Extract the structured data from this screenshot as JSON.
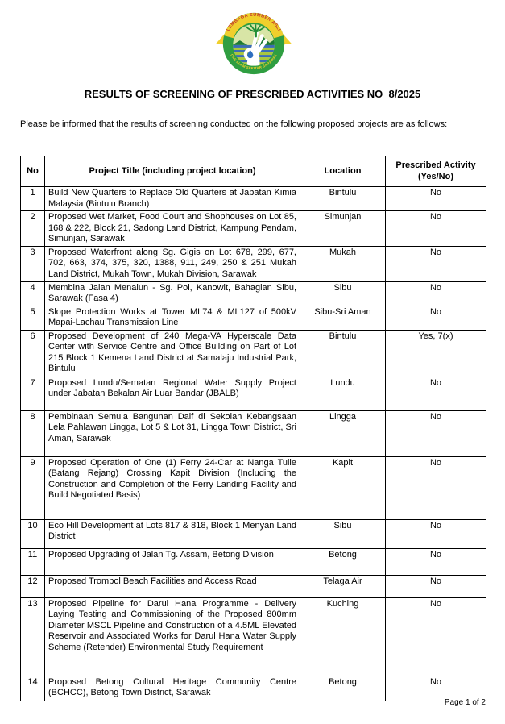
{
  "logo": {
    "top_text": "LEMBAGA SUMBER ASLI",
    "bottom_text": "DAN ALAM SEKITAR SARAWAK",
    "colors": {
      "band_yellow": "#f0cf2d",
      "ring_green": "#2f9e41",
      "top_text_red": "#c2392b",
      "stripe_blue": "#3a6cb4",
      "stripe_green": "#a9c63d",
      "hill_green": "#1d7a33",
      "inner_light": "#d8e5a6",
      "drop_blue": "#2f6fc0",
      "hand_white": "#ffffff",
      "plant_green": "#1f8c34"
    }
  },
  "title": "RESULTS OF SCREENING OF PRESCRIBED ACTIVITIES NO  8/2025",
  "intro": "Please be informed that the results of screening conducted on the following proposed projects are as follows:",
  "table": {
    "headers": {
      "no": "No",
      "project_title": "Project Title (including project location)",
      "location": "Location",
      "prescribed_activity": "Prescribed Activity (Yes/No)"
    },
    "rows": [
      {
        "no": "1",
        "project_title": "Build New Quarters to Replace Old Quarters at Jabatan Kimia Malaysia (Bintulu Branch)",
        "location": "Bintulu",
        "prescribed_activity": "No"
      },
      {
        "no": "2",
        "project_title": "Proposed Wet Market, Food Court and Shophouses on Lot 85, 168 & 222, Block 21, Sadong Land District, Kampung Pendam, Simunjan, Sarawak",
        "location": "Simunjan",
        "prescribed_activity": "No"
      },
      {
        "no": "3",
        "project_title": "Proposed Waterfront along Sg. Gigis on Lot 678, 299, 677, 702, 663, 374, 375, 320, 1388, 911, 249, 250 & 251 Mukah Land District, Mukah Town, Mukah Division, Sarawak",
        "location": "Mukah",
        "prescribed_activity": "No"
      },
      {
        "no": "4",
        "project_title": "Membina Jalan Menalun - Sg. Poi, Kanowit, Bahagian Sibu, Sarawak (Fasa 4)",
        "location": "Sibu",
        "prescribed_activity": "No"
      },
      {
        "no": "5",
        "project_title": "Slope Protection Works at Tower ML74 & ML127 of 500kV Mapai-Lachau Transmission Line",
        "location": "Sibu-Sri Aman",
        "prescribed_activity": "No"
      },
      {
        "no": "6",
        "project_title": "Proposed Development of 240 Mega-VA Hyperscale Data Center with Service Centre and Office Building on Part of Lot 215 Block 1 Kemena Land District at Samalaju Industrial Park, Bintulu",
        "location": "Bintulu",
        "prescribed_activity": "Yes, 7(x)"
      },
      {
        "no": "7",
        "project_title": "Proposed Lundu/Sematan Regional Water Supply Project under Jabatan Bekalan Air Luar Bandar (JBALB)",
        "location": "Lundu",
        "prescribed_activity": "No"
      },
      {
        "no": "8",
        "project_title": "Pembinaan Semula Bangunan Daif di Sekolah Kebangsaan Lela Pahlawan Lingga, Lot 5 & Lot 31, Lingga Town District, Sri Aman, Sarawak",
        "location": "Lingga",
        "prescribed_activity": "No"
      },
      {
        "no": "9",
        "project_title": "Proposed Operation of One (1) Ferry 24-Car at Nanga Tulie (Batang Rejang) Crossing Kapit Division (Including the Construction and Completion of the Ferry Landing Facility and Build Negotiated Basis)",
        "location": "Kapit",
        "prescribed_activity": "No"
      },
      {
        "no": "10",
        "project_title": "Eco Hill Development at Lots 817 & 818, Block 1 Menyan Land District",
        "location": "Sibu",
        "prescribed_activity": "No"
      },
      {
        "no": "11",
        "project_title": "Proposed Upgrading of Jalan Tg. Assam, Betong Division",
        "location": "Betong",
        "prescribed_activity": "No"
      },
      {
        "no": "12",
        "project_title": "Proposed Trombol Beach Facilities and Access Road",
        "location": "Telaga Air",
        "prescribed_activity": "No"
      },
      {
        "no": "13",
        "project_title": "Proposed Pipeline for Darul Hana Programme - Delivery Laying Testing and Commissioning of the Proposed 800mm Diameter MSCL Pipeline and Construction of a 4.5ML Elevated Reservoir and Associated Works for Darul Hana Water Supply Scheme (Retender) Environmental Study Requirement",
        "location": "Kuching",
        "prescribed_activity": "No"
      },
      {
        "no": "14",
        "project_title": "Proposed Betong Cultural Heritage Community Centre (BCHCC), Betong Town District, Sarawak",
        "location": "Betong",
        "prescribed_activity": "No"
      }
    ]
  },
  "footer": {
    "page_label": "Page 1 of 2"
  }
}
